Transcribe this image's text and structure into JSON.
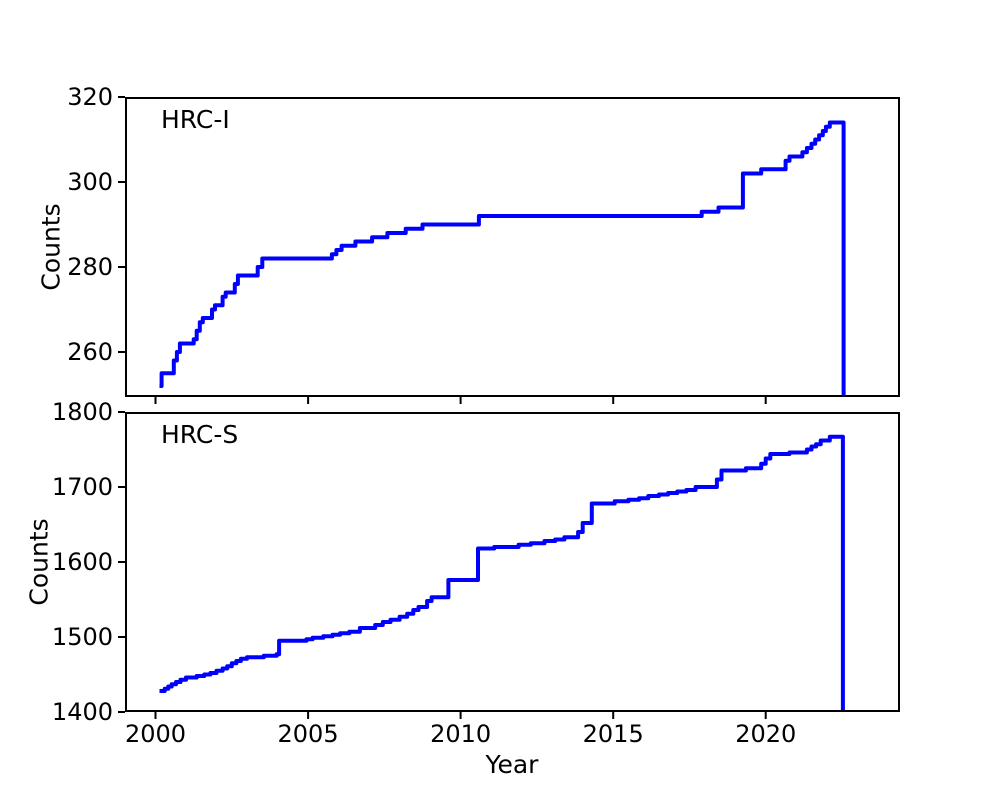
{
  "chart_data": [
    {
      "type": "line",
      "step": "post",
      "series_label": "HRC-I",
      "ylabel": "Counts",
      "xlabel": "Year",
      "line_color": "#0000FF",
      "xlim": [
        1999.0,
        2024.4
      ],
      "ylim": [
        249.4,
        320
      ],
      "x_ticks": [
        2000,
        2005,
        2010,
        2015,
        2020
      ],
      "x_tick_labels": [],
      "y_ticks": [
        260,
        280,
        300,
        320
      ],
      "y_tick_labels": [
        "260",
        "280",
        "300",
        "320"
      ],
      "grid": false,
      "legend": false,
      "points": [
        [
          2000.13,
          252
        ],
        [
          2000.2,
          255
        ],
        [
          2000.6,
          258
        ],
        [
          2000.7,
          260
        ],
        [
          2000.8,
          262
        ],
        [
          2001.25,
          263
        ],
        [
          2001.35,
          265
        ],
        [
          2001.45,
          267
        ],
        [
          2001.55,
          268
        ],
        [
          2001.85,
          270
        ],
        [
          2001.95,
          271
        ],
        [
          2002.2,
          273
        ],
        [
          2002.3,
          274
        ],
        [
          2002.6,
          276
        ],
        [
          2002.7,
          278
        ],
        [
          2003.35,
          280
        ],
        [
          2003.5,
          282
        ],
        [
          2005.78,
          283
        ],
        [
          2005.93,
          284
        ],
        [
          2006.1,
          285
        ],
        [
          2006.55,
          286
        ],
        [
          2007.1,
          287
        ],
        [
          2007.6,
          288
        ],
        [
          2008.2,
          289
        ],
        [
          2008.75,
          290
        ],
        [
          2010.6,
          292
        ],
        [
          2017.9,
          293
        ],
        [
          2018.45,
          294
        ],
        [
          2019.25,
          302
        ],
        [
          2019.85,
          303
        ],
        [
          2020.65,
          305
        ],
        [
          2020.78,
          306
        ],
        [
          2021.2,
          307
        ],
        [
          2021.35,
          308
        ],
        [
          2021.5,
          309
        ],
        [
          2021.62,
          310
        ],
        [
          2021.75,
          311
        ],
        [
          2021.87,
          312
        ],
        [
          2021.97,
          313
        ],
        [
          2022.1,
          314
        ],
        [
          2022.55,
          249.4
        ]
      ]
    },
    {
      "type": "line",
      "step": "post",
      "series_label": "HRC-S",
      "ylabel": "Counts",
      "xlabel": "Year",
      "line_color": "#0000FF",
      "xlim": [
        1999.0,
        2024.4
      ],
      "ylim": [
        1400,
        1800
      ],
      "x_ticks": [
        2000,
        2005,
        2010,
        2015,
        2020
      ],
      "x_tick_labels": [
        "2000",
        "2005",
        "2010",
        "2015",
        "2020"
      ],
      "y_ticks": [
        1400,
        1500,
        1600,
        1700,
        1800
      ],
      "y_tick_labels": [
        "1400",
        "1500",
        "1600",
        "1700",
        "1800"
      ],
      "grid": false,
      "legend": false,
      "points": [
        [
          2000.13,
          1428
        ],
        [
          2000.3,
          1431
        ],
        [
          2000.42,
          1434
        ],
        [
          2000.53,
          1437
        ],
        [
          2000.67,
          1440
        ],
        [
          2000.82,
          1443
        ],
        [
          2001.0,
          1446
        ],
        [
          2001.35,
          1448
        ],
        [
          2001.6,
          1450
        ],
        [
          2001.8,
          1452
        ],
        [
          2002.0,
          1455
        ],
        [
          2002.2,
          1458
        ],
        [
          2002.35,
          1461
        ],
        [
          2002.5,
          1465
        ],
        [
          2002.65,
          1468
        ],
        [
          2002.8,
          1471
        ],
        [
          2003.0,
          1473
        ],
        [
          2003.55,
          1475
        ],
        [
          2003.97,
          1477
        ],
        [
          2004.05,
          1495
        ],
        [
          2004.95,
          1497
        ],
        [
          2005.15,
          1499
        ],
        [
          2005.5,
          1501
        ],
        [
          2005.8,
          1503
        ],
        [
          2006.05,
          1505
        ],
        [
          2006.35,
          1507
        ],
        [
          2006.7,
          1512
        ],
        [
          2007.2,
          1516
        ],
        [
          2007.45,
          1520
        ],
        [
          2007.7,
          1523
        ],
        [
          2008.0,
          1527
        ],
        [
          2008.25,
          1531
        ],
        [
          2008.45,
          1536
        ],
        [
          2008.62,
          1540
        ],
        [
          2008.9,
          1548
        ],
        [
          2009.05,
          1553
        ],
        [
          2009.6,
          1576
        ],
        [
          2010.57,
          1618
        ],
        [
          2011.1,
          1620
        ],
        [
          2011.9,
          1623
        ],
        [
          2012.3,
          1625
        ],
        [
          2012.75,
          1628
        ],
        [
          2013.1,
          1630
        ],
        [
          2013.4,
          1633
        ],
        [
          2013.85,
          1640
        ],
        [
          2014.0,
          1652
        ],
        [
          2014.3,
          1678
        ],
        [
          2015.05,
          1681
        ],
        [
          2015.5,
          1683
        ],
        [
          2015.85,
          1685
        ],
        [
          2016.15,
          1688
        ],
        [
          2016.5,
          1690
        ],
        [
          2016.8,
          1692
        ],
        [
          2017.1,
          1694
        ],
        [
          2017.4,
          1696
        ],
        [
          2017.7,
          1700
        ],
        [
          2018.4,
          1710
        ],
        [
          2018.55,
          1722
        ],
        [
          2019.35,
          1725
        ],
        [
          2019.85,
          1731
        ],
        [
          2020.0,
          1738
        ],
        [
          2020.15,
          1744
        ],
        [
          2020.78,
          1746
        ],
        [
          2021.35,
          1750
        ],
        [
          2021.5,
          1754
        ],
        [
          2021.65,
          1757
        ],
        [
          2021.8,
          1762
        ],
        [
          2022.1,
          1767
        ],
        [
          2022.53,
          1400
        ]
      ]
    }
  ]
}
